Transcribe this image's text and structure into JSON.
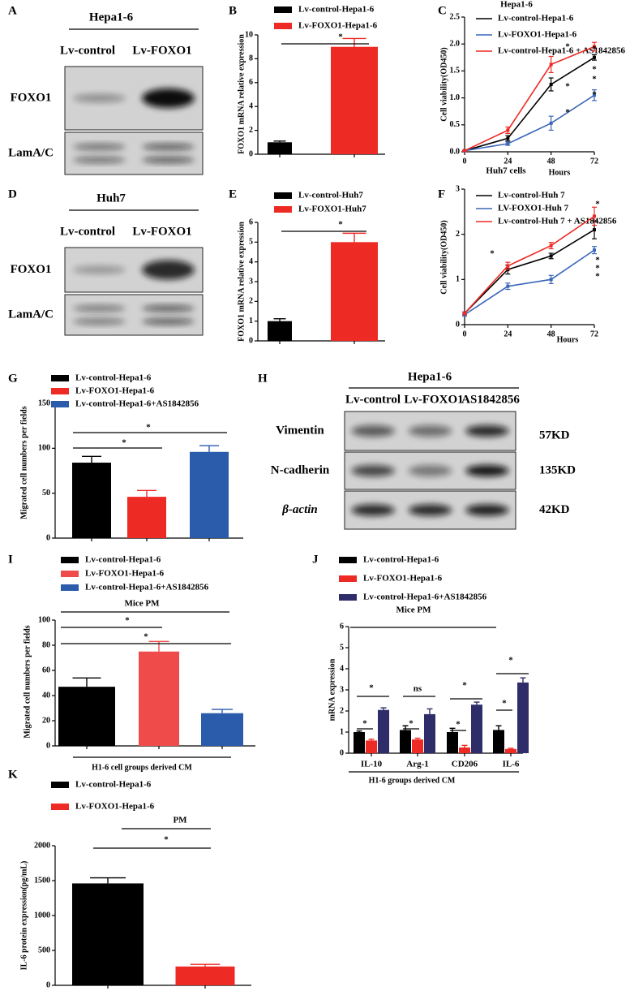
{
  "chart_data": [
    {
      "type": "bar",
      "panel": "B",
      "ylabel": "FOXO1 mRNA relative expression",
      "categories": [
        null
      ],
      "series": [
        {
          "name": "Lv-control-Hepa1-6",
          "color": "#000000",
          "values": [
            1.0
          ],
          "errors": [
            0.1
          ]
        },
        {
          "name": "Lv-FOXO1-Hepa1-6",
          "color": "#ee2a24",
          "values": [
            9.0
          ],
          "errors": [
            0.7
          ]
        }
      ],
      "ylim": [
        0,
        10
      ],
      "yticks": [
        0,
        2,
        4,
        6,
        8,
        10
      ],
      "annotations": [
        "*"
      ]
    },
    {
      "type": "line",
      "panel": "C",
      "title": "Hepa1-6",
      "ylabel": "Cell viability(OD450)",
      "xlabel": "Hours",
      "x": [
        0,
        24,
        48,
        72
      ],
      "xlim": [
        0,
        72
      ],
      "xticks": [
        0,
        24,
        48,
        72
      ],
      "series": [
        {
          "name": "Lv-control-Hepa1-6",
          "color": "#000000",
          "values": [
            0.02,
            0.25,
            1.25,
            1.75
          ],
          "errors": [
            0.01,
            0.05,
            0.12,
            0.05
          ]
        },
        {
          "name": "Lv-FOXO1-Hepa1-6",
          "color": "#3a66b8",
          "values": [
            0.02,
            0.15,
            0.53,
            1.05
          ],
          "errors": [
            0.01,
            0.03,
            0.13,
            0.1
          ]
        },
        {
          "name": "Lv-control-Hepa1-6 + AS1842856",
          "color": "#ee2a24",
          "values": [
            0.02,
            0.4,
            1.62,
            1.95
          ],
          "errors": [
            0.01,
            0.06,
            0.15,
            0.08
          ]
        }
      ],
      "ylim": [
        0,
        2.5
      ],
      "yticks": [
        {
          "value": 0,
          "label": "0.0"
        },
        {
          "value": 0.5,
          "label": "0.5"
        },
        {
          "value": 1,
          "label": "1.0"
        },
        1.5,
        {
          "value": 2,
          "label": "2.0"
        },
        2.5
      ],
      "annotations": [
        "*",
        "*",
        "*",
        "*",
        "*",
        "*",
        "*"
      ]
    },
    {
      "type": "bar",
      "panel": "E",
      "ylabel": "FOXO1 mRNA relative expression",
      "categories": [
        null
      ],
      "series": [
        {
          "name": "Lv-control-Huh7",
          "color": "#000000",
          "values": [
            1.0
          ],
          "errors": [
            0.12
          ]
        },
        {
          "name": "Lv-FOXO1-Huh7",
          "color": "#ee2a24",
          "values": [
            5.0
          ],
          "errors": [
            0.45
          ]
        }
      ],
      "ylim": [
        0,
        6
      ],
      "yticks": [
        0,
        1,
        2,
        3,
        4,
        5,
        6
      ],
      "annotations": [
        "*"
      ]
    },
    {
      "type": "line",
      "panel": "F",
      "title": "Huh7 cells",
      "ylabel": "Cell viability(OD450)",
      "xlabel": "Hours",
      "x": [
        0,
        24,
        48,
        72
      ],
      "xlim": [
        0,
        72
      ],
      "xticks": [
        0,
        24,
        48,
        72
      ],
      "series": [
        {
          "name": "Lv-control-Huh 7",
          "color": "#000000",
          "values": [
            0.25,
            1.22,
            1.52,
            2.1
          ],
          "errors": [
            0.03,
            0.1,
            0.06,
            0.2
          ]
        },
        {
          "name": "LV-FOXO1-Huh 7",
          "color": "#3a66b8",
          "values": [
            0.22,
            0.85,
            1.0,
            1.65
          ],
          "errors": [
            0.03,
            0.07,
            0.09,
            0.08
          ]
        },
        {
          "name": "Lv-control-Huh 7 + AS1842856",
          "color": "#ee2a24",
          "values": [
            0.25,
            1.3,
            1.75,
            2.4
          ],
          "errors": [
            0.03,
            0.08,
            0.07,
            0.2
          ]
        }
      ],
      "ylim": [
        0,
        3
      ],
      "yticks": [
        0,
        1,
        2,
        3
      ],
      "annotations": [
        "*",
        "*",
        "*",
        "*",
        "*"
      ]
    },
    {
      "type": "bar",
      "panel": "G",
      "ylabel": "Migrated cell numbers per fields",
      "categories": [
        null
      ],
      "series": [
        {
          "name": "Lv-control-Hepa1-6",
          "color": "#000000",
          "values": [
            84
          ],
          "errors": [
            7
          ]
        },
        {
          "name": "Lv-FOXO1-Hepa1-6",
          "color": "#ee2a24",
          "values": [
            46
          ],
          "errors": [
            7
          ]
        },
        {
          "name": "Lv-control-Hepa1-6+AS1842856",
          "color": "#2b5cac",
          "values": [
            96
          ],
          "errors": [
            7
          ]
        }
      ],
      "ylim": [
        0,
        150
      ],
      "yticks": [
        0,
        50,
        100,
        150
      ],
      "annotations": [
        "*",
        "*"
      ]
    },
    {
      "type": "bar",
      "panel": "I",
      "title": "Mice PM",
      "ylabel": "Migrated cell numbers per fields",
      "xlabel": "H1-6 cell groups derived CM",
      "categories": [
        null
      ],
      "series": [
        {
          "name": "Lv-control-Hepa1-6",
          "color": "#000000",
          "values": [
            47
          ],
          "errors": [
            7
          ]
        },
        {
          "name": "Lv-FOXO1-Hepa1-6",
          "color": "#ef4b4b",
          "values": [
            75
          ],
          "errors": [
            8
          ]
        },
        {
          "name": "Lv-control-Hepa1-6+AS1842856",
          "color": "#2b5cac",
          "values": [
            26
          ],
          "errors": [
            3
          ]
        }
      ],
      "ylim": [
        0,
        100
      ],
      "yticks": [
        0,
        20,
        40,
        60,
        80,
        100
      ],
      "annotations": [
        "*",
        "*"
      ]
    },
    {
      "type": "bar",
      "panel": "J",
      "title": "Mice PM",
      "ylabel": "mRNA expression",
      "xlabel": "H1-6 groups derived CM",
      "categories": [
        "IL-10",
        "Arg-1",
        "CD206",
        "IL-6"
      ],
      "series": [
        {
          "name": "Lv-control-Hepa1-6",
          "color": "#000000",
          "values": [
            1.0,
            1.1,
            1.0,
            1.1
          ],
          "errors": [
            0.05,
            0.2,
            0.18,
            0.2
          ]
        },
        {
          "name": "Lv-FOXO1-Hepa1-6",
          "color": "#ee2a24",
          "values": [
            0.6,
            0.65,
            0.27,
            0.2
          ],
          "errors": [
            0.06,
            0.06,
            0.1,
            0.03
          ]
        },
        {
          "name": "Lv-control-Hepa1-6+AS1842856",
          "color": "#2e2d6a",
          "values": [
            2.05,
            1.85,
            2.3,
            3.35
          ],
          "errors": [
            0.1,
            0.25,
            0.12,
            0.22
          ]
        }
      ],
      "ylim": [
        0,
        6
      ],
      "yticks": [
        0,
        1,
        2,
        3,
        4,
        5,
        6
      ],
      "annotations": [
        "*",
        "*",
        "*",
        "ns",
        "*",
        "*",
        "*",
        "*"
      ]
    },
    {
      "type": "bar",
      "panel": "K",
      "title": "PM",
      "ylabel": "IL-6 protein expression(pg/mL)",
      "categories": [
        null
      ],
      "series": [
        {
          "name": "Lv-control-Hepa1-6",
          "color": "#000000",
          "values": [
            1460
          ],
          "errors": [
            80
          ]
        },
        {
          "name": "Lv-FOXO1-Hepa1-6",
          "color": "#ee2a24",
          "values": [
            270
          ],
          "errors": [
            30
          ]
        }
      ],
      "ylim": [
        0,
        2000
      ],
      "yticks": [
        0,
        500,
        1000,
        1500,
        2000
      ],
      "annotations": [
        "*"
      ]
    }
  ],
  "blots": [
    {
      "panel": "A",
      "title": "Hepa1-6",
      "columns": [
        "Lv-control",
        "Lv-FOXO1"
      ],
      "rows": [
        "FOXO1",
        "LamA/C"
      ]
    },
    {
      "panel": "D",
      "title": "Huh7",
      "columns": [
        "Lv-control",
        "Lv-FOXO1"
      ],
      "rows": [
        "FOXO1",
        "LamA/C"
      ]
    },
    {
      "panel": "H",
      "title": "Hepa1-6",
      "columns": [
        "Lv-control",
        "Lv-FOXO1",
        "AS1842856"
      ],
      "rows": [
        "Vimentin",
        "N-cadherin",
        "β-actin"
      ],
      "sizes": [
        "57KD",
        "135KD",
        "42KD"
      ]
    }
  ]
}
